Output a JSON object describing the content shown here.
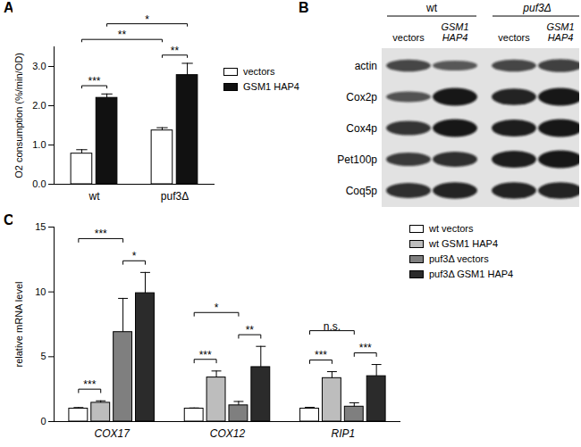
{
  "chart_data": [
    {
      "panel": "A",
      "type": "bar",
      "y_label": "O2 consumption (%/min/OD)",
      "categories": [
        "wt",
        "puf3Δ"
      ],
      "series": [
        {
          "name": "vectors",
          "color": "#ffffff",
          "values": [
            0.78,
            1.37
          ],
          "errors": [
            0.1,
            0.07
          ]
        },
        {
          "name": "GSM1 HAP4",
          "color": "#111111",
          "values": [
            2.2,
            2.78
          ],
          "errors": [
            0.1,
            0.3
          ]
        }
      ],
      "ylim": [
        0,
        3.5
      ],
      "yticks": [
        0,
        1,
        2,
        3
      ],
      "legend": "right",
      "annotations": [
        {
          "text": "***",
          "from": [
            "wt",
            "vectors"
          ],
          "to": [
            "wt",
            "GSM1 HAP4"
          ]
        },
        {
          "text": "**",
          "from": [
            "puf3Δ",
            "vectors"
          ],
          "to": [
            "puf3Δ",
            "GSM1 HAP4"
          ]
        },
        {
          "text": "**",
          "from": [
            "wt",
            "vectors"
          ],
          "to": [
            "puf3Δ",
            "vectors"
          ]
        },
        {
          "text": "*",
          "from": [
            "wt",
            "GSM1 HAP4"
          ],
          "to": [
            "puf3Δ",
            "GSM1 HAP4"
          ]
        }
      ]
    },
    {
      "panel": "C",
      "type": "bar",
      "y_label": "relative mRNA level",
      "categories": [
        "COX17",
        "COX12",
        "RIP1"
      ],
      "series": [
        {
          "name": "wt vectors",
          "color": "#ffffff",
          "values": [
            1.0,
            1.0,
            1.0
          ],
          "errors": [
            0.08,
            0.05,
            0.1
          ]
        },
        {
          "name": "wt GSM1 HAP4",
          "color": "#bdbdbd",
          "values": [
            1.45,
            3.4,
            3.35
          ],
          "errors": [
            0.15,
            0.5,
            0.5
          ]
        },
        {
          "name": "puf3Δ vectors",
          "color": "#7f7f7f",
          "values": [
            6.9,
            1.25,
            1.15
          ],
          "errors": [
            2.6,
            0.3,
            0.3
          ]
        },
        {
          "name": "puf3Δ GSM1 HAP4",
          "color": "#2b2b2b",
          "values": [
            9.9,
            4.2,
            3.5
          ],
          "errors": [
            1.6,
            1.6,
            0.9
          ]
        }
      ],
      "ylim": [
        0,
        15
      ],
      "yticks": [
        0,
        5,
        10,
        15
      ],
      "legend": "right",
      "annotations": [
        {
          "text": "***",
          "from": [
            "COX17",
            "wt vectors"
          ],
          "to": [
            "COX17",
            "wt GSM1 HAP4"
          ]
        },
        {
          "text": "*",
          "from": [
            "COX17",
            "puf3Δ vectors"
          ],
          "to": [
            "COX17",
            "puf3Δ GSM1 HAP4"
          ]
        },
        {
          "text": "***",
          "from": [
            "COX17",
            "wt vectors"
          ],
          "to": [
            "COX17",
            "puf3Δ vectors"
          ]
        },
        {
          "text": "***",
          "from": [
            "COX12",
            "wt vectors"
          ],
          "to": [
            "COX12",
            "wt GSM1 HAP4"
          ]
        },
        {
          "text": "**",
          "from": [
            "COX12",
            "puf3Δ vectors"
          ],
          "to": [
            "COX12",
            "puf3Δ GSM1 HAP4"
          ]
        },
        {
          "text": "*",
          "from": [
            "COX12",
            "wt vectors"
          ],
          "to": [
            "COX12",
            "puf3Δ vectors"
          ]
        },
        {
          "text": "***",
          "from": [
            "RIP1",
            "wt vectors"
          ],
          "to": [
            "RIP1",
            "wt GSM1 HAP4"
          ]
        },
        {
          "text": "***",
          "from": [
            "RIP1",
            "puf3Δ vectors"
          ],
          "to": [
            "RIP1",
            "puf3Δ GSM1 HAP4"
          ]
        },
        {
          "text": "n.s.",
          "from": [
            "RIP1",
            "wt vectors"
          ],
          "to": [
            "RIP1",
            "puf3Δ vectors"
          ]
        }
      ]
    }
  ],
  "blot": {
    "panel": "B",
    "groups": [
      {
        "label": "wt",
        "lanes": [
          "vectors",
          "GSM1 HAP4"
        ]
      },
      {
        "label": "puf3Δ",
        "lanes": [
          "vectors",
          "GSM1 HAP4"
        ]
      }
    ],
    "rows": [
      {
        "label": "actin",
        "band_intensity": [
          0.6,
          0.45,
          0.6,
          0.65
        ]
      },
      {
        "label": "Cox2p",
        "band_intensity": [
          0.5,
          1.0,
          0.9,
          1.0
        ]
      },
      {
        "label": "Cox4p",
        "band_intensity": [
          0.75,
          1.0,
          0.95,
          1.0
        ]
      },
      {
        "label": "Pet100p",
        "band_intensity": [
          0.7,
          0.8,
          0.95,
          1.0
        ]
      },
      {
        "label": "Coq5p",
        "band_intensity": [
          0.8,
          0.9,
          0.9,
          0.9
        ]
      }
    ]
  }
}
